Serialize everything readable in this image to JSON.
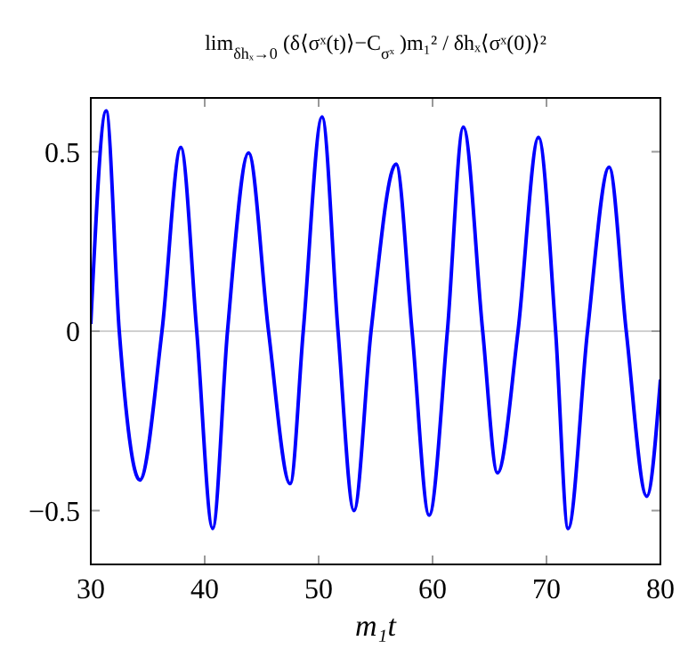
{
  "chart_data": {
    "type": "line",
    "title": "lim$_{δhₓ→0}$ (δ⟨σˣ(t)⟩−C$_{σˣ}$)m₁² / δhₓ⟨σˣ(0)⟩²",
    "xlabel": "m₁t",
    "xlim": [
      30,
      80
    ],
    "xticks": [
      30,
      40,
      50,
      60,
      70,
      80
    ],
    "ylim": [
      -0.65,
      0.65
    ],
    "yticks": [
      -0.5,
      0,
      0.5
    ],
    "ref_lines": [
      {
        "axis": "y",
        "value": 0,
        "color": "#c0c0c0"
      }
    ],
    "grid": false,
    "marker": "none",
    "line_style": "solid",
    "series": [
      {
        "color": "#0000ff",
        "x": [
          30,
          31.35,
          32.5,
          34.3,
          36.25,
          37.9,
          39.3,
          40.7,
          42.0,
          43.85,
          45.6,
          47.5,
          48.65,
          50.3,
          51.7,
          53.1,
          54.6,
          56.8,
          58.2,
          59.7,
          61.3,
          62.7,
          64.4,
          65.7,
          67.5,
          69.3,
          70.8,
          71.9,
          73.6,
          75.5,
          77.0,
          78.8,
          80
        ],
        "values": [
          0.02,
          0.614,
          0,
          -0.415,
          0,
          0.512,
          0,
          -0.55,
          0,
          0.497,
          0,
          -0.425,
          0,
          0.597,
          0,
          -0.5,
          0,
          0.466,
          0,
          -0.513,
          0,
          0.569,
          0,
          -0.395,
          0,
          0.54,
          0,
          -0.55,
          0,
          0.457,
          0,
          -0.46,
          -0.135
        ]
      }
    ]
  }
}
